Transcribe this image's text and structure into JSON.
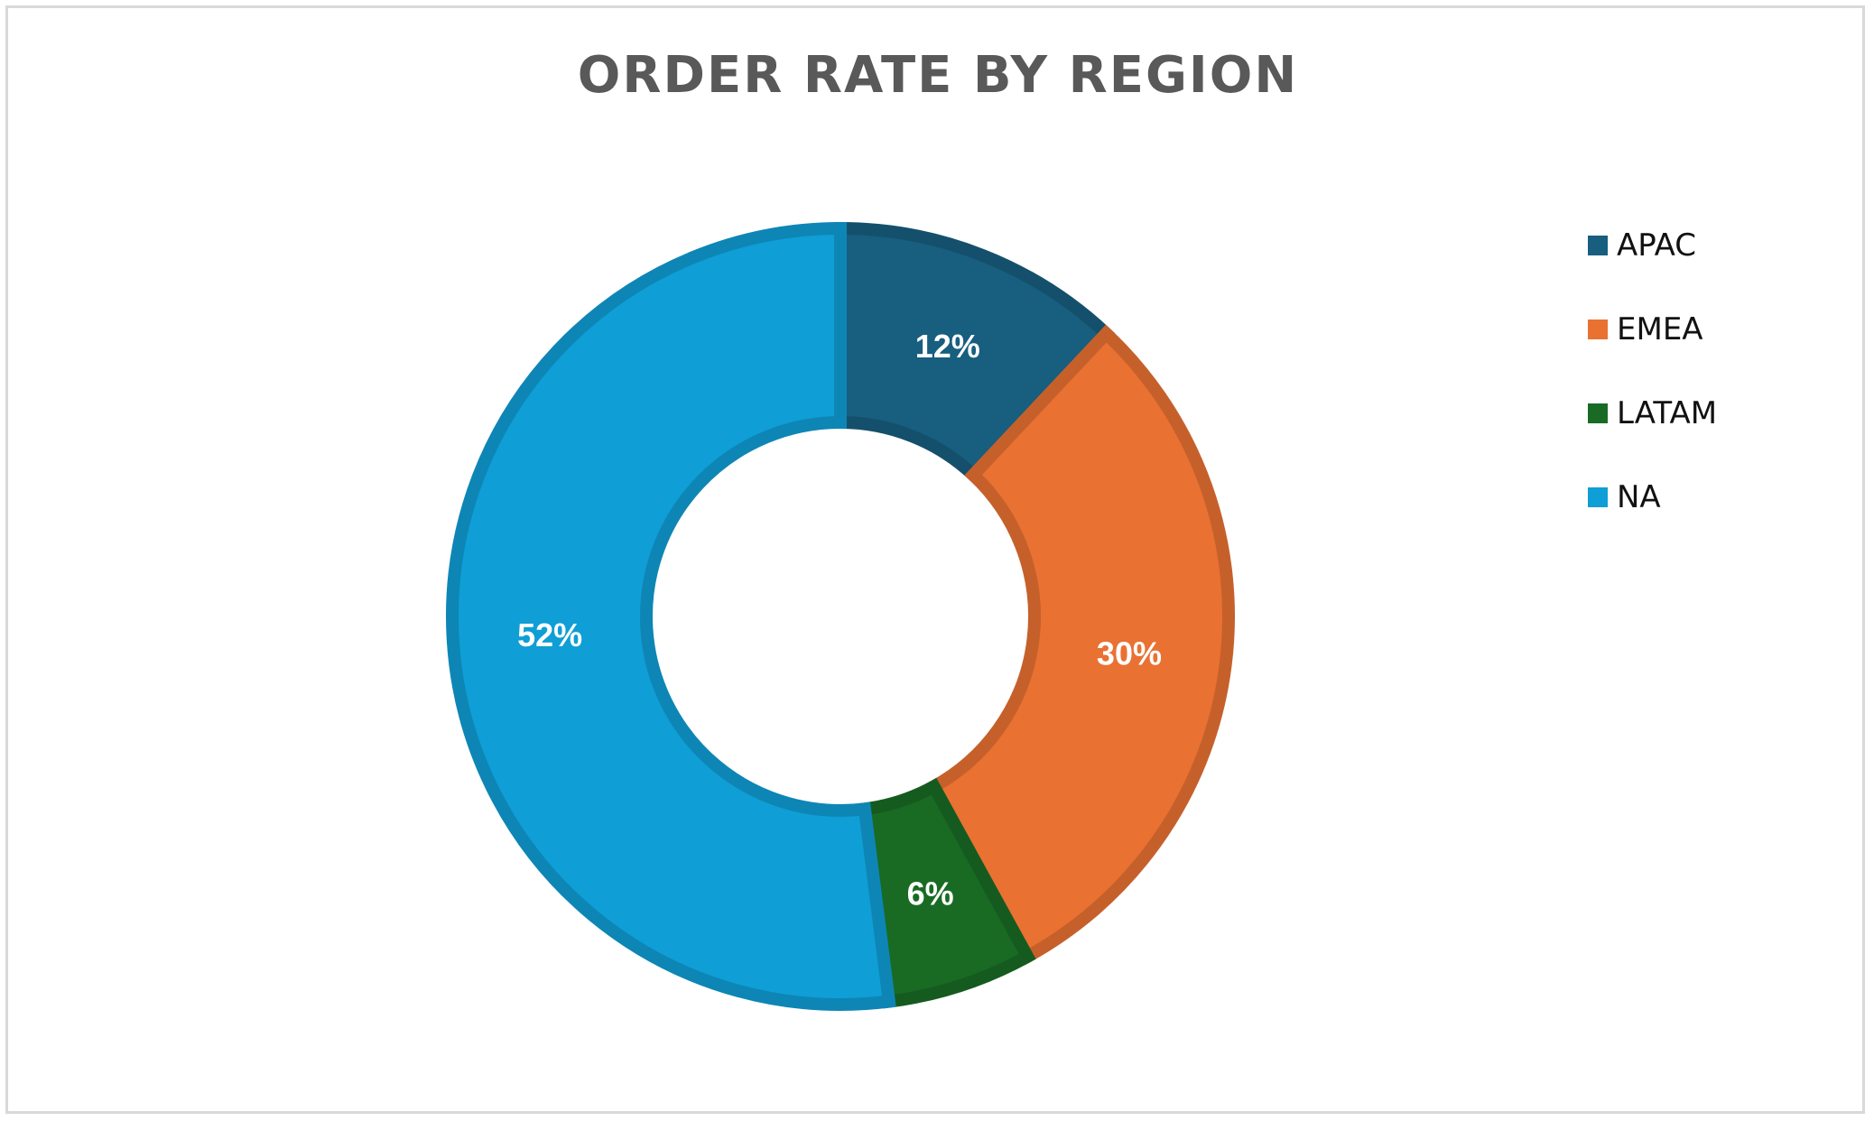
{
  "chart_data": {
    "type": "pie",
    "variant": "donut",
    "title": "ORDER RATE BY REGION",
    "categories": [
      "APAC",
      "EMEA",
      "LATAM",
      "NA"
    ],
    "values": [
      12,
      30,
      6,
      52
    ],
    "labels": [
      "12%",
      "30%",
      "6%",
      "52%"
    ],
    "colors": [
      "#175E7F",
      "#E97132",
      "#196B24",
      "#0F9ED5"
    ],
    "legend_position": "right"
  }
}
